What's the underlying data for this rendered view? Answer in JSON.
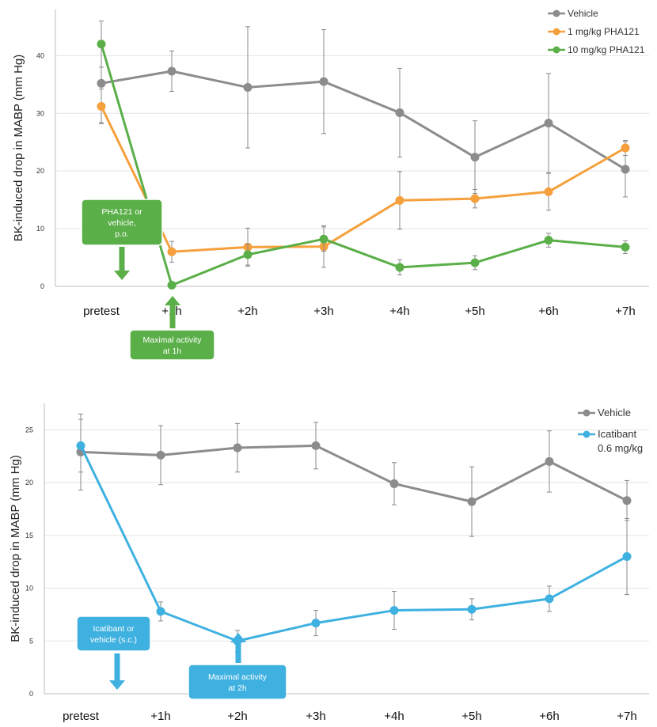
{
  "chart_data": [
    {
      "type": "line",
      "ylabel": "BK-induced drop in MABP (mm Hg)",
      "ylim": [
        0,
        48
      ],
      "yticks": [
        0,
        10,
        20,
        30,
        40
      ],
      "grid": true,
      "legend": "top-right",
      "categories": [
        "pretest",
        "+1h",
        "+2h",
        "+3h",
        "+4h",
        "+5h",
        "+6h",
        "+7h"
      ],
      "series": [
        {
          "name": "Vehicle",
          "color": "#8c8c8c",
          "values": [
            35.2,
            37.3,
            34.5,
            35.5,
            30.1,
            22.4,
            28.3,
            20.3
          ],
          "errors": [
            6.8,
            3.5,
            10.5,
            9.0,
            7.7,
            6.3,
            8.6,
            4.8
          ]
        },
        {
          "name": "1 mg/kg PHA121",
          "color": "#f5a03c",
          "values": [
            31.2,
            6.0,
            6.8,
            6.9,
            14.9,
            15.2,
            16.4,
            24.0
          ],
          "errors": [
            3.0,
            1.8,
            3.3,
            3.6,
            5.0,
            1.6,
            3.2,
            1.3
          ]
        },
        {
          "name": "10 mg/kg PHA121",
          "color": "#5aaf48",
          "values": [
            42.0,
            0.2,
            5.5,
            8.2,
            3.3,
            4.1,
            8.0,
            6.8
          ],
          "errors": [
            4.0,
            0.3,
            1.8,
            2.1,
            1.3,
            1.2,
            1.2,
            1.1
          ]
        }
      ],
      "annotations": [
        {
          "text": "PHA121 or vehicle, p.o.",
          "lines": [
            "PHA121 or",
            "vehicle,",
            "p.o."
          ],
          "color": "#5aaf48"
        },
        {
          "text": "Maximal activity at 1h",
          "lines": [
            "Maximal activity",
            "at 1h"
          ],
          "color": "#5aaf48"
        }
      ]
    },
    {
      "type": "line",
      "ylabel": "BK-induced drop in MABP (mm Hg)",
      "ylim": [
        0,
        27.5
      ],
      "yticks": [
        0,
        5,
        10,
        15,
        20,
        25
      ],
      "grid": true,
      "legend": "top-right",
      "categories": [
        "pretest",
        "+1h",
        "+2h",
        "+3h",
        "+4h",
        "+5h",
        "+6h",
        "+7h"
      ],
      "series": [
        {
          "name": "Vehicle",
          "color": "#8c8c8c",
          "values": [
            22.9,
            22.6,
            23.3,
            23.5,
            19.9,
            18.2,
            22.0,
            18.3
          ],
          "errors": [
            3.6,
            2.8,
            2.3,
            2.2,
            2.0,
            3.3,
            2.9,
            1.9
          ]
        },
        {
          "name": "Icatibant 0.6 mg/kg",
          "name_lines": [
            "Icatibant",
            "0.6 mg/kg"
          ],
          "color": "#3fb1e0",
          "values": [
            23.5,
            7.8,
            5.0,
            6.7,
            7.9,
            8.0,
            9.0,
            13.0
          ],
          "errors": [
            2.5,
            0.9,
            1.0,
            1.2,
            1.8,
            1.0,
            1.2,
            3.6
          ]
        }
      ],
      "annotations": [
        {
          "text": "Icatibant or vehicle (s.c.)",
          "lines": [
            "Icatibant or",
            "vehicle (s.c.)"
          ],
          "color": "#3fb1e0"
        },
        {
          "text": "Maximal activity at 2h",
          "lines": [
            "Maximal activity",
            "at 2h"
          ],
          "color": "#3fb1e0"
        }
      ]
    }
  ]
}
